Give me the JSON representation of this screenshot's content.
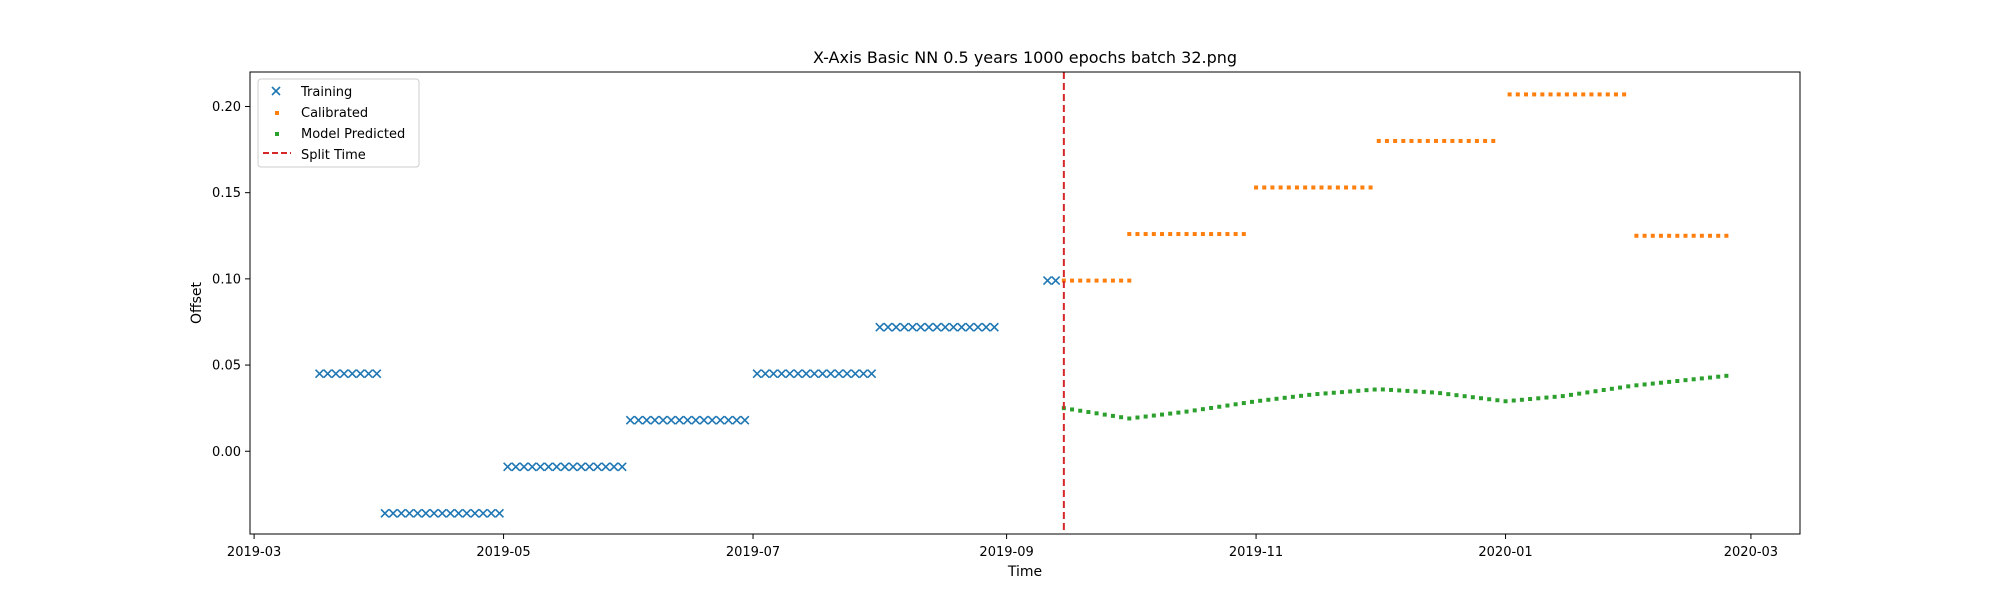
{
  "chart_data": {
    "type": "scatter",
    "title": "X-Axis Basic NN 0.5 years 1000 epochs batch 32.png",
    "xlabel": "Time",
    "ylabel": "Offset",
    "xlim": [
      "2019-02-28",
      "2020-03-13"
    ],
    "ylim": [
      -0.048,
      0.22
    ],
    "x_ticks": [
      "2019-03",
      "2019-05",
      "2019-07",
      "2019-09",
      "2019-11",
      "2020-01",
      "2020-03"
    ],
    "y_ticks": [
      0.0,
      0.05,
      0.1,
      0.15,
      0.2
    ],
    "y_tick_labels": [
      "0.00",
      "0.05",
      "0.10",
      "0.15",
      "0.20"
    ],
    "legend_position": "top-left",
    "grid": false,
    "split_time": "2019-09-15",
    "series": [
      {
        "name": "Training",
        "marker": "x",
        "color": "#1f77b4",
        "segments": [
          {
            "start": "2019-03-17",
            "count": 8,
            "step_days": 2,
            "y": 0.045
          },
          {
            "start": "2019-04-02",
            "count": 15,
            "step_days": 2,
            "y": -0.036
          },
          {
            "start": "2019-05-02",
            "count": 15,
            "step_days": 2,
            "y": -0.009
          },
          {
            "start": "2019-06-01",
            "count": 15,
            "step_days": 2,
            "y": 0.018
          },
          {
            "start": "2019-07-02",
            "count": 15,
            "step_days": 2,
            "y": 0.045
          },
          {
            "start": "2019-08-01",
            "count": 15,
            "step_days": 2,
            "y": 0.072
          },
          {
            "start": "2019-09-11",
            "count": 2,
            "step_days": 2,
            "y": 0.099
          }
        ]
      },
      {
        "name": "Calibrated",
        "marker": "square",
        "color": "#ff7f0e",
        "segments": [
          {
            "start": "2019-09-15",
            "count": 9,
            "step_days": 2,
            "y": 0.099
          },
          {
            "start": "2019-10-01",
            "count": 15,
            "step_days": 2,
            "y": 0.126
          },
          {
            "start": "2019-11-01",
            "count": 15,
            "step_days": 2,
            "y": 0.153
          },
          {
            "start": "2019-12-01",
            "count": 15,
            "step_days": 2,
            "y": 0.18
          },
          {
            "start": "2020-01-02",
            "count": 15,
            "step_days": 2,
            "y": 0.207
          },
          {
            "start": "2020-02-02",
            "count": 12,
            "step_days": 2,
            "y": 0.125
          }
        ]
      },
      {
        "name": "Model Predicted",
        "marker": "dot",
        "color": "#2ca02c",
        "points": [
          {
            "x": "2019-09-15",
            "y": 0.025
          },
          {
            "x": "2019-10-01",
            "y": 0.019
          },
          {
            "x": "2019-10-15",
            "y": 0.023
          },
          {
            "x": "2019-11-01",
            "y": 0.029
          },
          {
            "x": "2019-11-15",
            "y": 0.033
          },
          {
            "x": "2019-12-01",
            "y": 0.036
          },
          {
            "x": "2019-12-15",
            "y": 0.034
          },
          {
            "x": "2020-01-01",
            "y": 0.029
          },
          {
            "x": "2020-01-15",
            "y": 0.032
          },
          {
            "x": "2020-02-01",
            "y": 0.038
          },
          {
            "x": "2020-02-25",
            "y": 0.044
          }
        ],
        "step_days": 2
      },
      {
        "name": "Split Time",
        "marker": "dashed-line",
        "color": "#d62728"
      }
    ]
  }
}
